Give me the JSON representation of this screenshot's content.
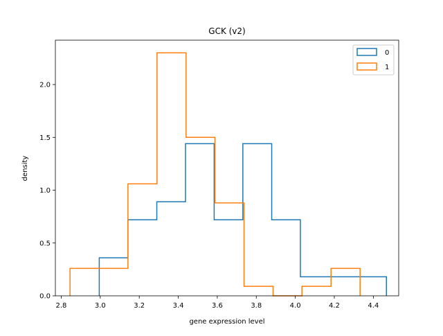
{
  "chart_data": {
    "type": "histogram-step",
    "title": "GCK  (v2)",
    "xlabel": "gene expression level",
    "ylabel": "density",
    "xlim": [
      2.77,
      4.53
    ],
    "ylim": [
      0,
      2.42
    ],
    "xticks": [
      2.8,
      3.0,
      3.2,
      3.4,
      3.6,
      3.8,
      4.0,
      4.2,
      4.4
    ],
    "xtick_labels": [
      "2.8",
      "3.0",
      "3.2",
      "3.4",
      "3.6",
      "3.8",
      "4.0",
      "4.2",
      "4.4"
    ],
    "yticks": [
      0.0,
      0.5,
      1.0,
      1.5,
      2.0
    ],
    "ytick_labels": [
      "0.0",
      "0.5",
      "1.0",
      "1.5",
      "2.0"
    ],
    "grid": false,
    "legend_position": "top-right",
    "series": [
      {
        "name": "0",
        "color": "#1f77b4",
        "bin_edges": [
          2.995,
          3.142,
          3.29,
          3.437,
          3.584,
          3.731,
          3.879,
          4.026,
          4.173,
          4.32,
          4.467
        ],
        "densities": [
          0.36,
          0.72,
          0.89,
          1.44,
          0.72,
          1.44,
          0.72,
          0.18,
          0.18,
          0.18
        ]
      },
      {
        "name": "1",
        "color": "#ff7f0e",
        "bin_edges": [
          2.845,
          2.994,
          3.142,
          3.291,
          3.44,
          3.588,
          3.737,
          3.886,
          4.034,
          4.183,
          4.332
        ],
        "densities": [
          0.26,
          0.26,
          1.06,
          2.3,
          1.5,
          0.88,
          0.09,
          0.0,
          0.09,
          0.26
        ]
      }
    ]
  }
}
